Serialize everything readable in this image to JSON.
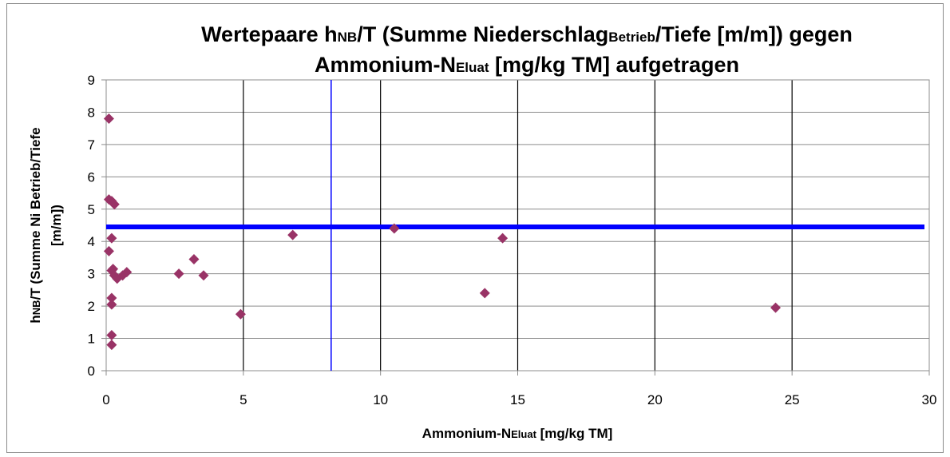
{
  "chart_data": {
    "type": "scatter",
    "title": [
      [
        "Wertepaare h",
        "NB",
        "/T (Summe Niederschlag",
        "Betrieb",
        "/Tiefe [m/m]) gegen"
      ],
      [
        "Ammonium-N",
        "Eluat",
        " [mg/kg TM] aufgetragen"
      ]
    ],
    "x_label": [
      "Ammonium-N",
      "Eluat",
      " [mg/kg TM]"
    ],
    "y_label": [
      [
        "h",
        "NB",
        "/T (Summe Ni Betrieb/Tiefe"
      ],
      [
        "[m/m])"
      ]
    ],
    "series": [
      {
        "color": "#993366",
        "x": [
          0.1,
          0.1,
          0.2,
          0.3,
          0.2,
          0.1,
          0.2,
          0.25,
          0.3,
          0.4,
          0.6,
          0.75,
          0.2,
          0.2,
          0.2,
          0.2,
          2.65,
          3.2,
          3.55,
          4.9,
          6.8,
          10.5,
          14.45,
          13.8,
          24.4
        ],
        "values": [
          7.8,
          5.3,
          5.25,
          5.15,
          4.1,
          3.7,
          3.1,
          3.15,
          2.95,
          2.85,
          2.95,
          3.05,
          2.25,
          2.05,
          1.1,
          0.8,
          3.0,
          3.45,
          2.95,
          1.75,
          4.2,
          4.4,
          4.1,
          2.4,
          1.95
        ]
      }
    ],
    "reference_lines": {
      "color": "#0000ff",
      "x": 8.2,
      "y": 4.45
    },
    "xlim": [
      0,
      30
    ],
    "xticks": [
      0,
      5,
      10,
      15,
      20,
      25,
      30
    ],
    "ylim": [
      0,
      9
    ],
    "yticks": [
      0,
      1,
      2,
      3,
      4,
      5,
      6,
      7,
      8,
      9
    ],
    "grid": true
  }
}
